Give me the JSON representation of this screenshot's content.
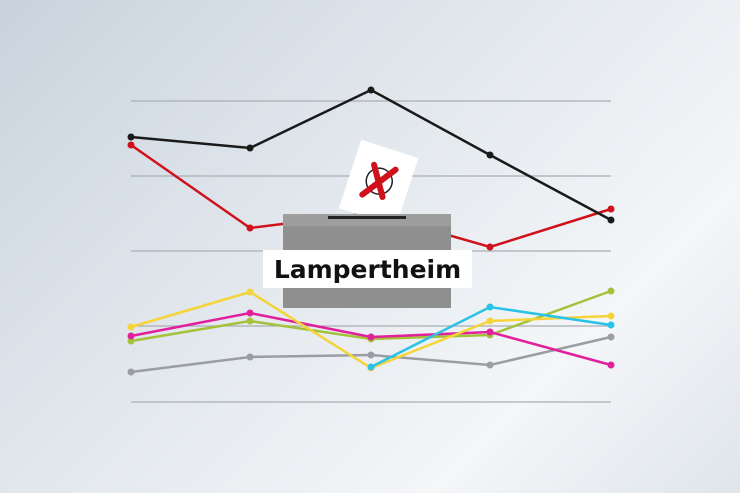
{
  "title": "Lampertheim",
  "colors": {
    "black": "#1a1a1a",
    "red": "#d0101a",
    "yellow": "#f5d43a",
    "cyan": "#29c3e6",
    "magenta": "#e0209c",
    "green": "#a3c23a",
    "gray": "#9a9ea3",
    "grid": "#a9aeb3",
    "box": "#8f8f8f",
    "box_top": "#a5a5a5"
  },
  "icons": [
    "ballot-box-icon",
    "ballot-paper-icon",
    "cross-mark-icon"
  ]
}
